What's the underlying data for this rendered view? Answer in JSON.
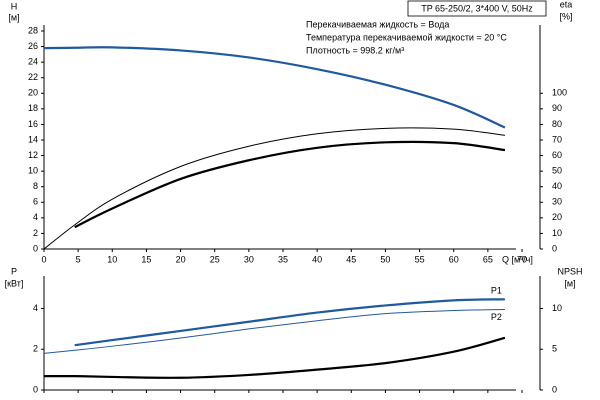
{
  "chart_data": [
    {
      "type": "line",
      "title": "TP 65-250/2, 3*400 V, 50Hz",
      "annotations": [
        "Перекачиваемая жидкость = Вода",
        "Температура перекачиваемой жидкости = 20 °C",
        "Плотность = 998.2 кг/м³"
      ],
      "x_label": "Q [м³/ч]",
      "y_label": "H",
      "y_unit": "[м]",
      "y2_label": "eta",
      "y2_unit": "[%]",
      "x": [
        0,
        4.5,
        10,
        20,
        30,
        40,
        50,
        60,
        67.5
      ],
      "xlim": [
        0,
        70
      ],
      "xticks": [
        0,
        5,
        10,
        15,
        20,
        25,
        30,
        35,
        40,
        45,
        50,
        55,
        60,
        65,
        70
      ],
      "ylim": [
        0,
        28
      ],
      "yticks": [
        0,
        2,
        4,
        6,
        8,
        10,
        12,
        14,
        16,
        18,
        20,
        22,
        24,
        26,
        28
      ],
      "y2lim": [
        0,
        140
      ],
      "y2ticks": [
        0,
        10,
        20,
        30,
        40,
        50,
        60,
        70,
        80,
        90,
        100
      ],
      "series": [
        {
          "color": "#1f5aa0",
          "width": 2.2,
          "values": [
            25.8,
            25.85,
            25.9,
            25.5,
            24.6,
            23.1,
            21.1,
            18.5,
            15.6
          ]
        },
        {
          "color": "#000000",
          "width": 1,
          "axis": "y2",
          "values": [
            0,
            15.5,
            32,
            53,
            66,
            74,
            77.5,
            77,
            73
          ]
        },
        {
          "color": "#000000",
          "width": 2.2,
          "axis": "y2",
          "values": [
            null,
            14,
            26,
            45,
            57,
            65,
            68.5,
            68,
            63.5
          ]
        }
      ]
    },
    {
      "type": "line",
      "y_label": "P",
      "y_unit": "[кВт]",
      "y2_label": "NPSH",
      "y2_unit": "[м]",
      "x": [
        0,
        4.5,
        10,
        20,
        30,
        40,
        50,
        60,
        67.5
      ],
      "xlim": [
        0,
        70
      ],
      "xticks": [
        0,
        5,
        10,
        15,
        20,
        25,
        30,
        35,
        40,
        45,
        50,
        55,
        60,
        65,
        70
      ],
      "ylim": [
        0,
        5.3
      ],
      "yticks": [
        0,
        2,
        4
      ],
      "y2lim": [
        0,
        13.25
      ],
      "y2ticks": [
        0,
        5,
        10
      ],
      "series": [
        {
          "name": "P1",
          "color": "#1f5aa0",
          "width": 2.2,
          "values": [
            null,
            2.2,
            2.45,
            2.9,
            3.35,
            3.8,
            4.15,
            4.4,
            4.45
          ]
        },
        {
          "name": "P2",
          "color": "#1f5aa0",
          "width": 1,
          "values": [
            1.8,
            1.95,
            2.15,
            2.55,
            3.0,
            3.4,
            3.75,
            3.9,
            3.95
          ]
        },
        {
          "color": "#000000",
          "width": 2.2,
          "axis": "y2",
          "values": [
            1.7,
            1.7,
            1.6,
            1.5,
            1.85,
            2.5,
            3.3,
            4.7,
            6.4
          ]
        }
      ]
    }
  ]
}
